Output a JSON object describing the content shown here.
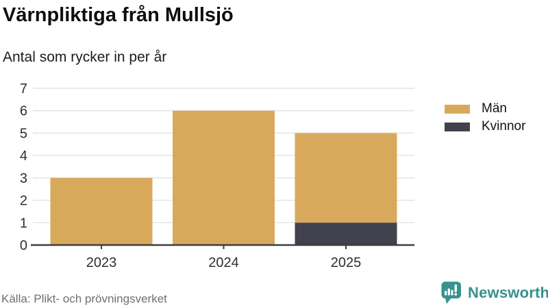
{
  "header": {
    "title": "Värnpliktiga från Mullsjö",
    "subtitle": "Antal som rycker in per år"
  },
  "chart_data": {
    "type": "bar",
    "stacked": true,
    "title": "Värnpliktiga från Mullsjö",
    "subtitle": "Antal som rycker in per år",
    "categories": [
      "2023",
      "2024",
      "2025"
    ],
    "series": [
      {
        "name": "Män",
        "color": "#D9A95B",
        "values": [
          3,
          6,
          4
        ]
      },
      {
        "name": "Kvinnor",
        "color": "#42424F",
        "values": [
          0,
          0,
          1
        ]
      }
    ],
    "totals": [
      3,
      6,
      5
    ],
    "ylim": [
      0,
      7
    ],
    "yticks": [
      0,
      1,
      2,
      3,
      4,
      5,
      6,
      7
    ],
    "grid": true,
    "legend_position": "right"
  },
  "footer": {
    "source": "Källa: Plikt- och prövningsverket",
    "brand": "Newsworthy"
  },
  "colors": {
    "men_bar": "#D9A95B",
    "women_bar": "#42424F",
    "brand_teal": "#37918E",
    "axis": "#3D3D3D",
    "gridline": "#E4E4E4",
    "tick_text": "#2E2E2E",
    "source_text": "#6F6F6F"
  }
}
